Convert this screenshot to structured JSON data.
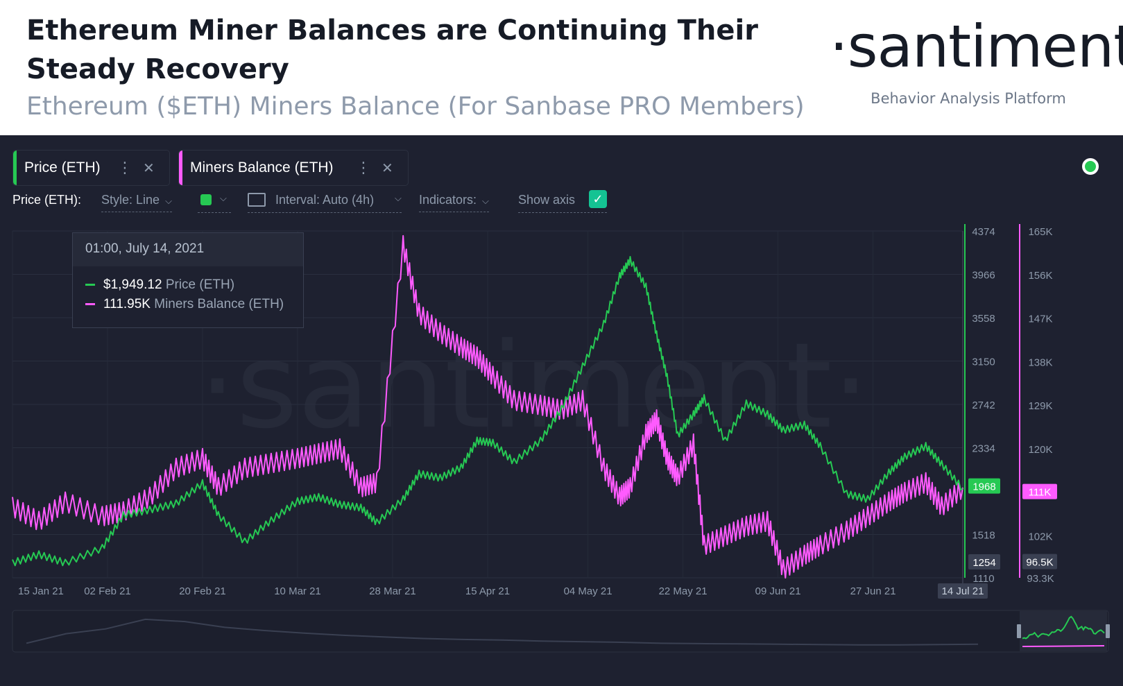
{
  "header": {
    "title": "Ethereum Miner Balances are Continuing Their Steady Recovery",
    "subtitle": "Ethereum ($ETH) Miners Balance (For Sanbase PRO Members)",
    "brand": "·santiment·",
    "brand_tagline": "Behavior Analysis Platform"
  },
  "watermark": "·santiment·",
  "metric_tabs": [
    {
      "label": "Price (ETH)",
      "color": "#26c953",
      "menu_icon": "vertical-dots-icon",
      "close_icon": "close-icon"
    },
    {
      "label": "Miners Balance (ETH)",
      "color": "#ff5bff",
      "menu_icon": "vertical-dots-icon",
      "close_icon": "close-icon"
    }
  ],
  "settings": {
    "metric_label": "Price (ETH):",
    "style": "Style: Line",
    "color_swatch": "#26c953",
    "interval": "Interval: Auto (4h)",
    "indicators": "Indicators:",
    "show_axis": "Show axis",
    "show_axis_checked": true
  },
  "tooltip": {
    "date": "01:00, July 14, 2021",
    "rows": [
      {
        "value": "$1,949.12",
        "name": "Price (ETH)",
        "color": "#26c953"
      },
      {
        "value": "111.95K",
        "name": "Miners Balance (ETH)",
        "color": "#ff5bff"
      }
    ]
  },
  "chart_data": {
    "type": "line",
    "x_ticks": [
      "15 Jan 21",
      "02 Feb 21",
      "20 Feb 21",
      "10 Mar 21",
      "28 Mar 21",
      "15 Apr 21",
      "04 May 21",
      "22 May 21",
      "09 Jun 21",
      "27 Jun 21",
      "ul 21"
    ],
    "x_highlight_label": "14 Jul 21",
    "grid": true,
    "series": [
      {
        "name": "Price (ETH)",
        "color": "#26c953",
        "axis": "left",
        "axis_ticks": [
          "4374",
          "3966",
          "3558",
          "3150",
          "2742",
          "2334",
          "1518",
          "1110"
        ],
        "ylim": [
          1110,
          4374
        ],
        "current_label": "1968",
        "min_label": "1254",
        "x": [
          "2021-01-15",
          "2021-01-20",
          "2021-01-25",
          "2021-02-01",
          "2021-02-05",
          "2021-02-10",
          "2021-02-15",
          "2021-02-20",
          "2021-02-23",
          "2021-02-28",
          "2021-03-05",
          "2021-03-10",
          "2021-03-14",
          "2021-03-18",
          "2021-03-22",
          "2021-03-25",
          "2021-03-30",
          "2021-04-02",
          "2021-04-06",
          "2021-04-10",
          "2021-04-13",
          "2021-04-16",
          "2021-04-20",
          "2021-04-25",
          "2021-04-29",
          "2021-05-03",
          "2021-05-07",
          "2021-05-10",
          "2021-05-12",
          "2021-05-15",
          "2021-05-17",
          "2021-05-19",
          "2021-05-21",
          "2021-05-24",
          "2021-05-26",
          "2021-05-30",
          "2021-06-03",
          "2021-06-07",
          "2021-06-10",
          "2021-06-14",
          "2021-06-17",
          "2021-06-22",
          "2021-06-26",
          "2021-06-30",
          "2021-07-03",
          "2021-07-07",
          "2021-07-10",
          "2021-07-14"
        ],
        "y": [
          1250,
          1330,
          1250,
          1390,
          1700,
          1750,
          1810,
          2000,
          1700,
          1450,
          1650,
          1830,
          1870,
          1800,
          1770,
          1630,
          1850,
          2090,
          2050,
          2150,
          2400,
          2380,
          2200,
          2400,
          2700,
          3100,
          3500,
          3950,
          4100,
          3850,
          3400,
          3000,
          2450,
          2650,
          2800,
          2400,
          2750,
          2650,
          2500,
          2550,
          2350,
          1900,
          1850,
          2100,
          2250,
          2350,
          2180,
          1949
        ]
      },
      {
        "name": "Miners Balance (ETH)",
        "color": "#ff5bff",
        "axis": "right",
        "axis_ticks": [
          "165K",
          "156K",
          "147K",
          "138K",
          "129K",
          "120K",
          "102K",
          "93.3K"
        ],
        "ylim": [
          93300,
          165000
        ],
        "current_label": "111K",
        "min_label": "96.5K",
        "x": [
          "2021-01-15",
          "2021-01-20",
          "2021-01-25",
          "2021-02-01",
          "2021-02-05",
          "2021-02-10",
          "2021-02-15",
          "2021-02-20",
          "2021-02-23",
          "2021-02-28",
          "2021-03-05",
          "2021-03-10",
          "2021-03-14",
          "2021-03-18",
          "2021-03-22",
          "2021-03-25",
          "2021-03-30",
          "2021-04-02",
          "2021-04-06",
          "2021-04-10",
          "2021-04-13",
          "2021-04-16",
          "2021-04-20",
          "2021-04-25",
          "2021-04-29",
          "2021-05-03",
          "2021-05-07",
          "2021-05-10",
          "2021-05-12",
          "2021-05-15",
          "2021-05-17",
          "2021-05-19",
          "2021-05-21",
          "2021-05-24",
          "2021-05-26",
          "2021-05-30",
          "2021-06-03",
          "2021-06-07",
          "2021-06-10",
          "2021-06-14",
          "2021-06-17",
          "2021-06-22",
          "2021-06-26",
          "2021-06-30",
          "2021-07-03",
          "2021-07-07",
          "2021-07-10",
          "2021-07-14"
        ],
        "y": [
          108000,
          105000,
          109000,
          106000,
          107000,
          110000,
          116000,
          118000,
          112000,
          116000,
          117000,
          118000,
          119000,
          120000,
          112000,
          113000,
          162000,
          148000,
          144000,
          141000,
          139000,
          135000,
          130000,
          129000,
          128000,
          130000,
          116000,
          110000,
          112000,
          123000,
          126000,
          118000,
          114000,
          121000,
          100000,
          102000,
          104000,
          105000,
          95000,
          98000,
          100000,
          103000,
          106000,
          109000,
          111000,
          113000,
          108000,
          111950
        ]
      }
    ]
  }
}
